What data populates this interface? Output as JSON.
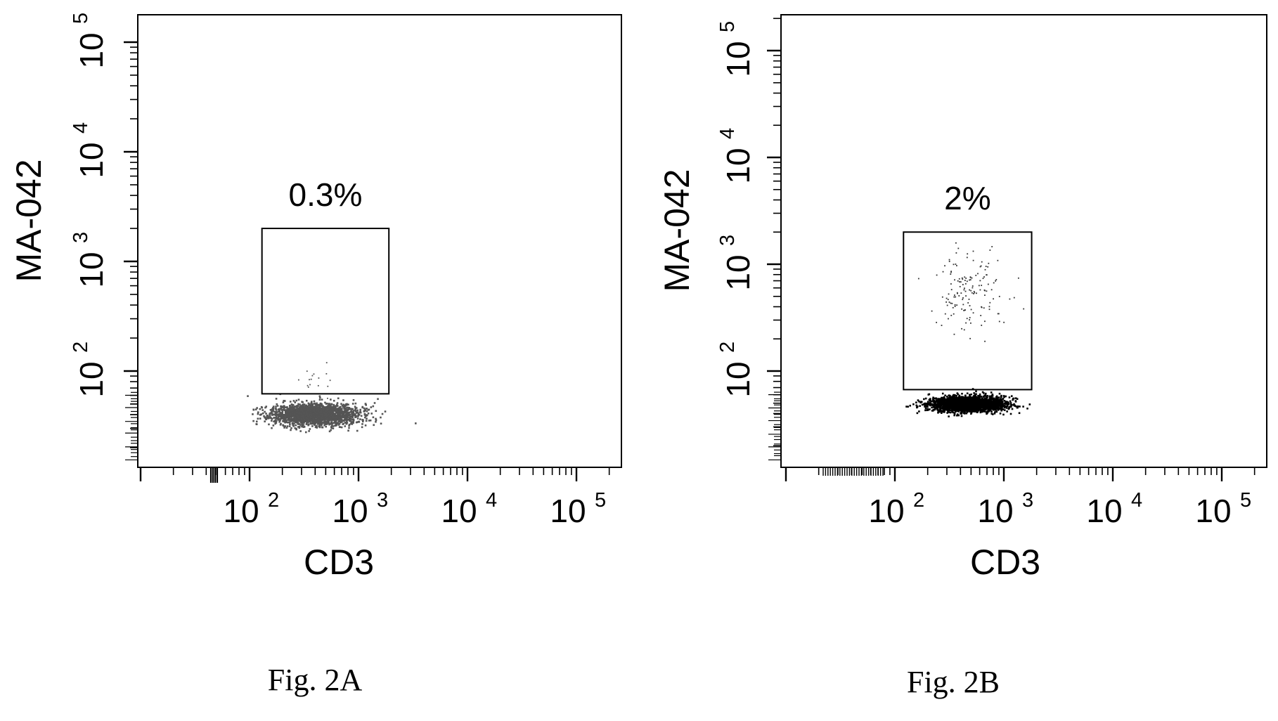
{
  "chart_data": [
    {
      "type": "scatter",
      "panel": "Fig. 2A",
      "caption": "Fig. 2A",
      "xlabel": "CD3",
      "ylabel": "MA-042",
      "xscale": "log",
      "yscale": "log",
      "xticks": [
        100,
        1000,
        10000,
        100000
      ],
      "yticks": [
        100,
        1000,
        10000,
        100000
      ],
      "tick_base": "10",
      "tick_exponents": [
        "2",
        "3",
        "4",
        "5"
      ],
      "grid": false,
      "gate": {
        "x": [
          130,
          1900
        ],
        "y": [
          62,
          2000
        ],
        "label": "0.3%"
      },
      "populations": [
        {
          "role": "main",
          "color": "#555555",
          "x_center": 400,
          "x_spread": 0.2,
          "y_center": 40,
          "y_spread": 0.05,
          "count": 2200
        },
        {
          "role": "sparse",
          "color": "#555555",
          "x_center": 420,
          "x_spread": 0.14,
          "y_center": 78,
          "y_spread": 0.1,
          "count": 16
        }
      ]
    },
    {
      "type": "scatter",
      "panel": "Fig. 2B",
      "caption": "Fig. 2B",
      "xlabel": "CD3",
      "ylabel": "MA-042",
      "xscale": "log",
      "yscale": "log",
      "xticks": [
        100,
        1000,
        10000,
        100000
      ],
      "yticks": [
        100,
        1000,
        10000,
        100000
      ],
      "tick_base": "10",
      "tick_exponents": [
        "2",
        "3",
        "4",
        "5"
      ],
      "grid": false,
      "gate": {
        "x": [
          120,
          1800
        ],
        "y": [
          67,
          2000
        ],
        "label": "2%"
      },
      "populations": [
        {
          "role": "main",
          "color": "#000000",
          "x_center": 460,
          "x_spread": 0.17,
          "y_center": 49,
          "y_spread": 0.035,
          "count": 2600
        },
        {
          "role": "positive",
          "color": "#333333",
          "x_center": 480,
          "x_spread": 0.16,
          "y_center": 600,
          "y_spread": 0.2,
          "count": 150
        }
      ]
    }
  ]
}
